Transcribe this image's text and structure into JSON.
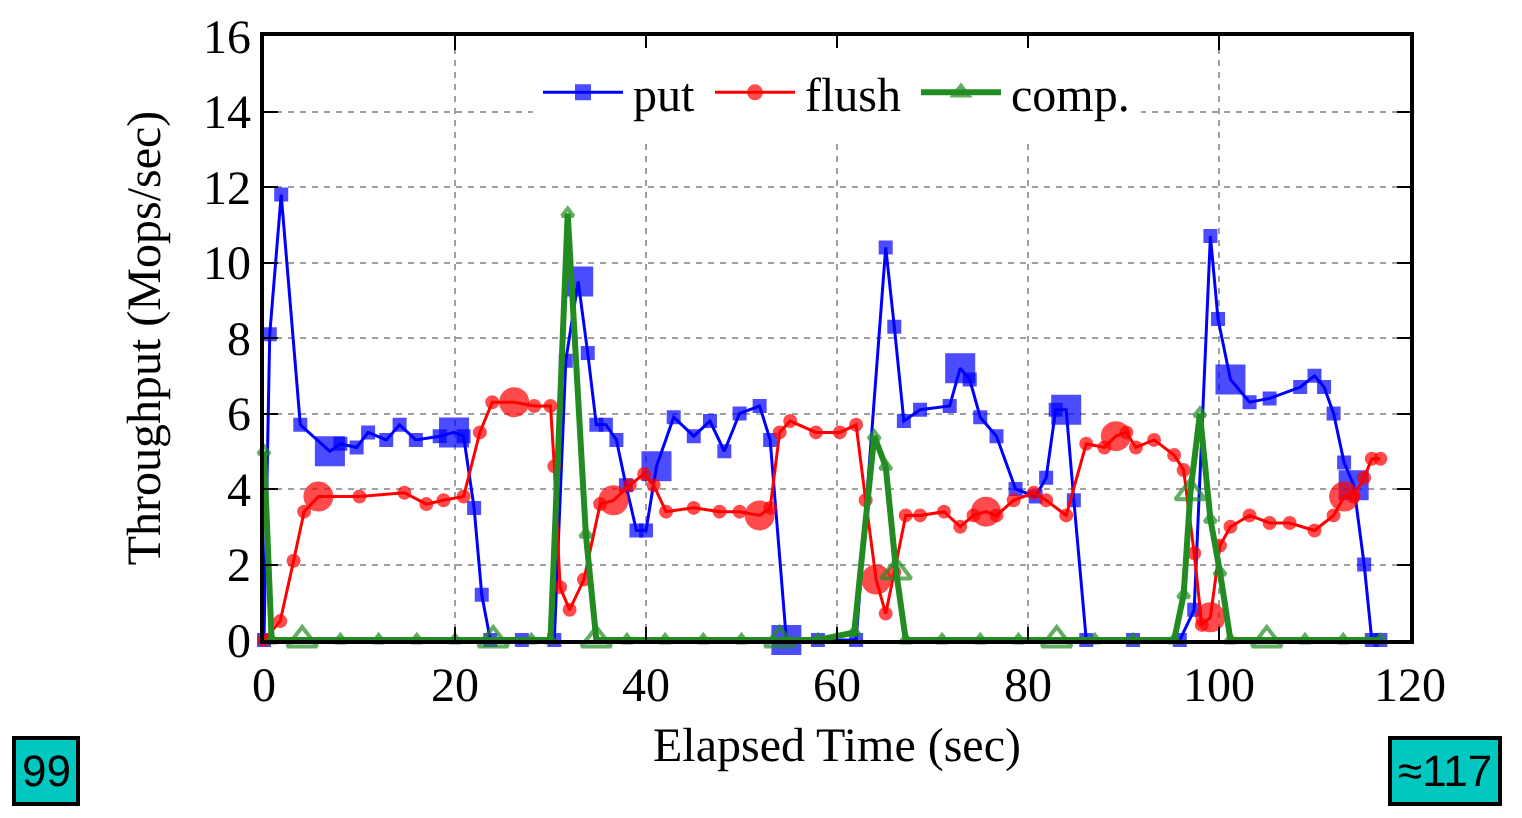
{
  "chart_data": {
    "type": "line",
    "xlabel": "Elapsed Time (sec)",
    "ylabel": "Throughput (Mops/sec)",
    "xlim": [
      0,
      120
    ],
    "xticks": [
      0,
      20,
      40,
      60,
      80,
      100,
      120
    ],
    "ylim": [
      0,
      16
    ],
    "yticks": [
      0,
      2,
      4,
      6,
      8,
      10,
      12,
      14,
      16
    ],
    "grid": true,
    "legend": "top",
    "line_style": "solid",
    "annotations": [
      "99",
      "≈117"
    ],
    "series": [
      {
        "name": "put",
        "color": "#0000ff",
        "marker": "square",
        "x": [
          0,
          0.6,
          1.8,
          3.8,
          6.9,
          8,
          9.7,
          10.9,
          12.8,
          14.2,
          15.9,
          18.4,
          19.9,
          20.9,
          22,
          22.8,
          23.7,
          27,
          30.4,
          31.6,
          32.9,
          33.9,
          34.8,
          35.8,
          36.9,
          37.9,
          39,
          40,
          41.1,
          42.9,
          45,
          46.7,
          48.2,
          49.8,
          51.9,
          53,
          54.7,
          58,
          62,
          65.1,
          66,
          67,
          68.7,
          71.8,
          72.9,
          73.9,
          75,
          76.7,
          78.7,
          80.8,
          81.9,
          82.9,
          84,
          84.8,
          86.1,
          91,
          95.9,
          97.4,
          99.1,
          99.9,
          101.2,
          103.2,
          105.3,
          108.5,
          110,
          111,
          112,
          113.1,
          114.1,
          115.2,
          116,
          116.9
        ],
        "values": [
          0,
          8.1,
          11.8,
          5.7,
          5.0,
          5.2,
          5.1,
          5.5,
          5.3,
          5.7,
          5.3,
          5.4,
          5.5,
          5.4,
          3.5,
          1.2,
          0,
          0,
          0,
          7.4,
          9.5,
          7.6,
          5.7,
          5.7,
          5.3,
          4.1,
          2.9,
          2.9,
          4.6,
          5.9,
          5.4,
          5.8,
          5.0,
          6.0,
          6.2,
          5.3,
          0,
          0,
          0,
          10.4,
          8.3,
          5.8,
          6.1,
          6.2,
          7.2,
          6.9,
          5.9,
          5.4,
          4.0,
          3.8,
          4.3,
          6.1,
          6.1,
          3.7,
          0,
          0,
          0,
          0.8,
          10.7,
          8.5,
          6.9,
          6.3,
          6.4,
          6.7,
          7.0,
          6.7,
          6.0,
          4.7,
          4.1,
          2.0,
          0,
          0
        ]
      },
      {
        "name": "flush",
        "color": "#ff0000",
        "marker": "circle",
        "x": [
          0,
          1.7,
          3.1,
          4.2,
          5.7,
          10,
          14.7,
          17,
          18.8,
          20.9,
          22.6,
          23.9,
          26.2,
          28.3,
          30,
          30.4,
          31,
          32,
          33.5,
          35.2,
          36.6,
          38.3,
          39.8,
          40.8,
          42.1,
          45,
          47.7,
          49.8,
          51.9,
          53,
          54,
          55.1,
          57.8,
          60.3,
          62,
          63,
          64.1,
          65.1,
          66,
          67.2,
          68.7,
          71.2,
          72.9,
          74.3,
          75.6,
          76.7,
          78.5,
          80.6,
          81.9,
          84,
          86.1,
          88,
          89.2,
          90.3,
          91.3,
          93.2,
          95.3,
          96.3,
          97.4,
          98.2,
          99.1,
          100.1,
          101.2,
          103.2,
          105.3,
          107.4,
          110,
          112,
          113.1,
          114.1,
          115.2,
          116,
          116.9
        ],
        "values": [
          0,
          0.5,
          2.1,
          3.4,
          3.8,
          3.8,
          3.9,
          3.6,
          3.7,
          3.8,
          5.5,
          6.3,
          6.3,
          6.2,
          6.2,
          4.6,
          1.4,
          0.8,
          1.6,
          3.6,
          3.7,
          4.1,
          4.4,
          4.1,
          3.4,
          3.5,
          3.4,
          3.4,
          3.3,
          3.5,
          5.5,
          5.8,
          5.5,
          5.5,
          5.7,
          3.7,
          1.6,
          0.7,
          1.8,
          3.3,
          3.3,
          3.4,
          3.0,
          3.3,
          3.4,
          3.3,
          3.7,
          3.9,
          3.7,
          3.3,
          5.2,
          5.1,
          5.4,
          5.5,
          5.1,
          5.3,
          4.9,
          4.5,
          2.3,
          0.4,
          0.6,
          2.5,
          3.0,
          3.3,
          3.1,
          3.1,
          2.9,
          3.3,
          3.8,
          3.8,
          4.3,
          4.8,
          4.8
        ]
      },
      {
        "name": "comp.",
        "color": "#228b22",
        "marker": "triangle",
        "x": [
          0,
          0.8,
          4,
          8,
          12,
          16,
          20,
          24,
          28,
          30,
          31.8,
          33.7,
          34.8,
          38,
          42,
          46,
          50,
          54,
          58,
          61.8,
          63.9,
          65.1,
          66.2,
          67.2,
          71,
          75,
          79,
          83,
          87,
          91,
          95.3,
          96.3,
          97,
          98,
          99.1,
          100.1,
          101.2,
          105,
          109,
          113,
          116.9
        ],
        "values": [
          5.0,
          0,
          0,
          0,
          0,
          0,
          0,
          0,
          0,
          0,
          11.3,
          2.8,
          0,
          0,
          0,
          0,
          0,
          0,
          0,
          0.2,
          5.4,
          4.6,
          1.8,
          0,
          0,
          0,
          0,
          0,
          0,
          0,
          0,
          1.2,
          3.9,
          6.0,
          3.2,
          1.8,
          0,
          0,
          0,
          0,
          0
        ]
      }
    ]
  }
}
